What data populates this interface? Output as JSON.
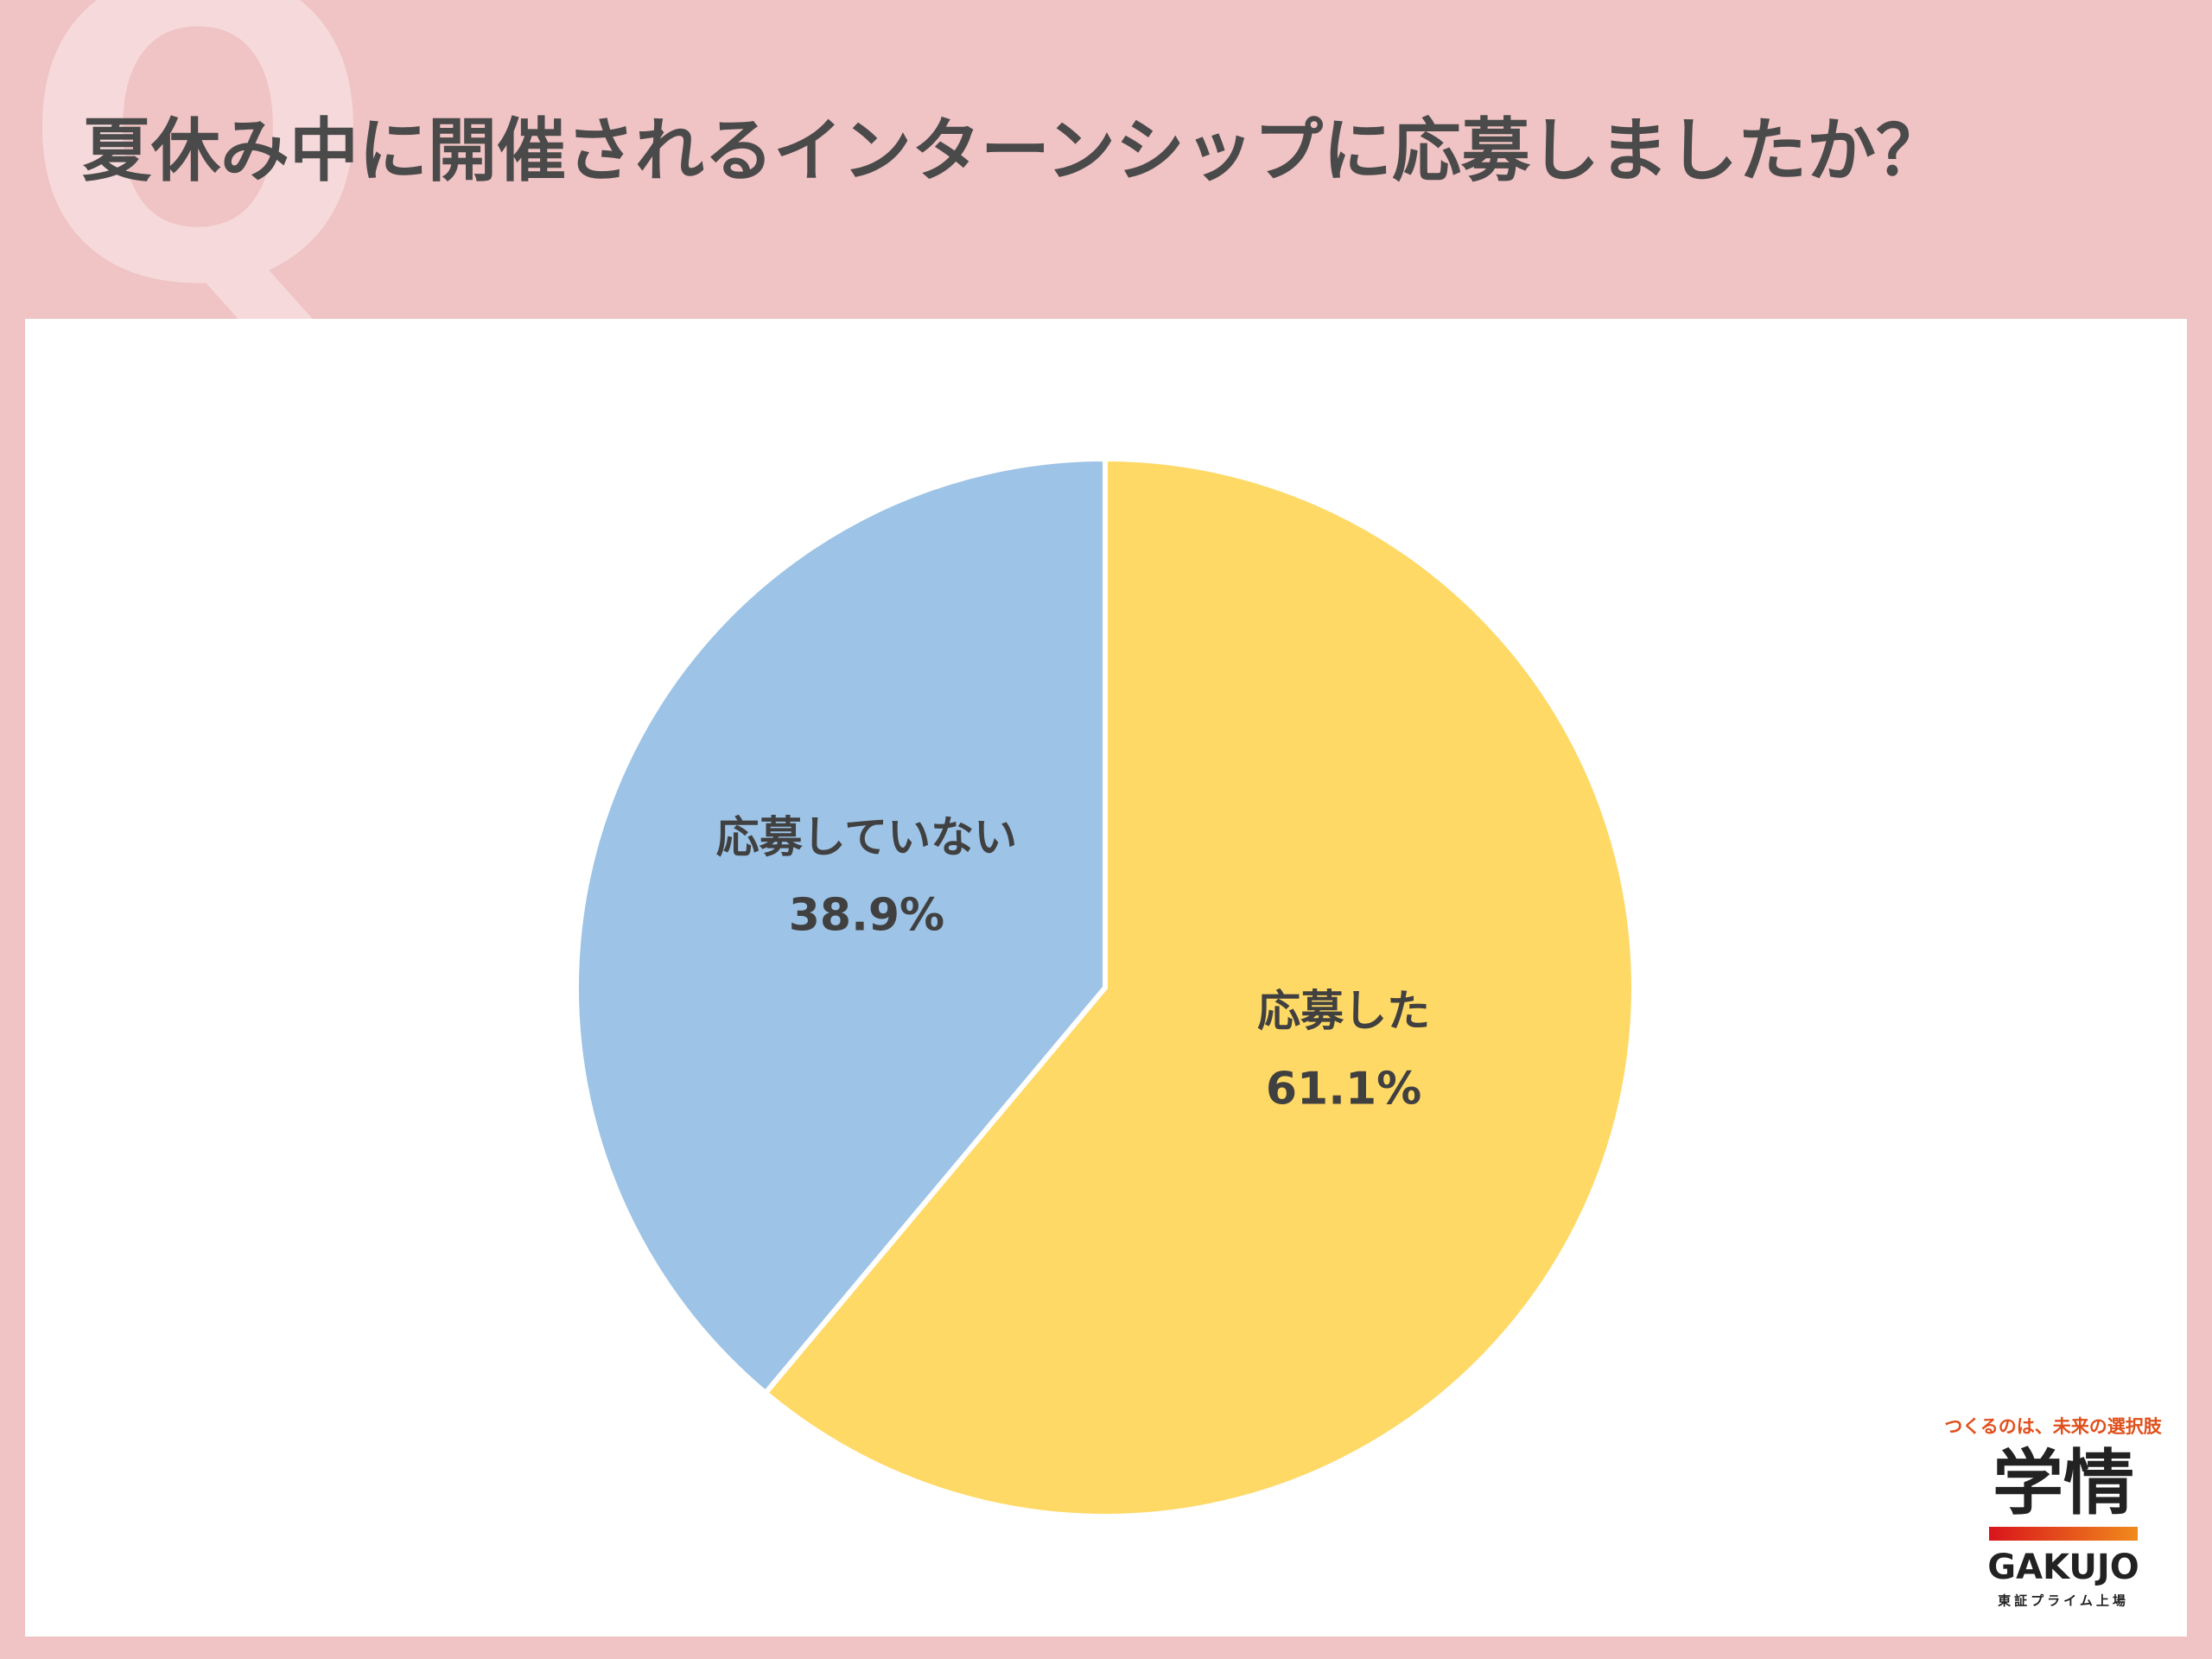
{
  "badge": "Q",
  "chart_data": {
    "type": "pie",
    "title": "夏休み中に開催されるインターンシップに応募しましたか？",
    "categories": [
      "応募した",
      "応募していない"
    ],
    "values": [
      61.1,
      38.9
    ],
    "value_labels": [
      "61.1%",
      "38.9%"
    ],
    "colors": [
      "#ffd966",
      "#9dc3e6"
    ]
  },
  "logo": {
    "tagline": "つくるのは、未来の選択肢",
    "name": "学情",
    "romaji": "GAKUJO",
    "listing": "東証プライム上場"
  }
}
